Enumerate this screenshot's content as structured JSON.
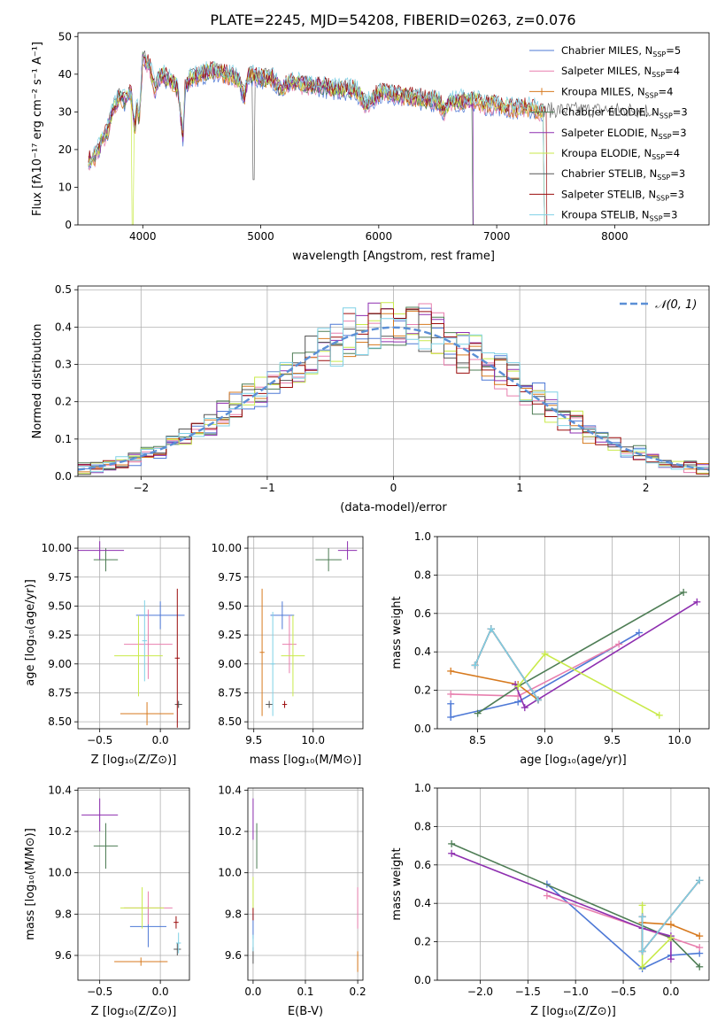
{
  "title": "PLATE=2245, MJD=54208, FIBERID=0263, z=0.076",
  "colors": [
    "#4e79d6",
    "#e87fae",
    "#d77a1f",
    "#4e7d55",
    "#8e2fb0",
    "#c9ea4a",
    "#555555",
    "#9b0c0c",
    "#7fd1e6"
  ],
  "chart_data": [
    {
      "id": "spectrum",
      "type": "line",
      "xlabel": "wavelength [Angstrom, rest frame]",
      "ylabel": "Flux [fλ10⁻¹⁷ erg cm⁻² s⁻¹ A⁻¹]",
      "xlim": [
        3450,
        8800
      ],
      "ylim": [
        0,
        51
      ],
      "xticks": [
        4000,
        5000,
        6000,
        7000,
        8000
      ],
      "yticks": [
        0,
        10,
        20,
        30,
        40,
        50
      ],
      "grid": false,
      "legend_position": "top-right",
      "legend": [
        {
          "label": "Chabrier MILES, N",
          "sub": "SSP",
          "tail": "=5",
          "color": "#4e79d6",
          "marker": false
        },
        {
          "label": "Salpeter MILES, N",
          "sub": "SSP",
          "tail": "=4",
          "color": "#e87fae",
          "marker": false
        },
        {
          "label": "Kroupa MILES, N",
          "sub": "SSP",
          "tail": "=4",
          "color": "#d77a1f",
          "marker": true
        },
        {
          "label": "Chabrier ELODIE, N",
          "sub": "SSP",
          "tail": "=3",
          "color": "#4e7d55",
          "marker": false
        },
        {
          "label": "Salpeter ELODIE, N",
          "sub": "SSP",
          "tail": "=3",
          "color": "#8e2fb0",
          "marker": false
        },
        {
          "label": "Kroupa ELODIE, N",
          "sub": "SSP",
          "tail": "=4",
          "color": "#c9ea4a",
          "marker": false
        },
        {
          "label": "Chabrier STELIB, N",
          "sub": "SSP",
          "tail": "=3",
          "color": "#555555",
          "marker": false
        },
        {
          "label": "Salpeter STELIB, N",
          "sub": "SSP",
          "tail": "=3",
          "color": "#9b0c0c",
          "marker": false
        },
        {
          "label": "Kroupa STELIB, N",
          "sub": "SSP",
          "tail": "=3",
          "color": "#7fd1e6",
          "marker": false
        }
      ],
      "x": [
        3540,
        3600,
        3650,
        3700,
        3750,
        3800,
        3850,
        3900,
        3933,
        3950,
        3968,
        4000,
        4030,
        4060,
        4102,
        4150,
        4200,
        4250,
        4300,
        4340,
        4360,
        4400,
        4500,
        4600,
        4700,
        4800,
        4861,
        4900,
        5000,
        5100,
        5175,
        5250,
        5400,
        5500,
        5600,
        5700,
        5800,
        5893,
        6000,
        6100,
        6200,
        6300,
        6400,
        6500,
        6563,
        6600,
        6700,
        6800,
        6900,
        7000,
        7100,
        7200,
        7300,
        7400
      ],
      "y": [
        17,
        18,
        22,
        25,
        31,
        34,
        33,
        35,
        25,
        33,
        27,
        45,
        43,
        42,
        36,
        40,
        39,
        38,
        36,
        23,
        37,
        39,
        40,
        41,
        40,
        39,
        34,
        40,
        39,
        39,
        36,
        38,
        37,
        37,
        36,
        36,
        36,
        32,
        35,
        35,
        34,
        34,
        33,
        33,
        30,
        33,
        33,
        33,
        32,
        32,
        31,
        31,
        31,
        30
      ]
    },
    {
      "id": "residuals",
      "type": "histogram",
      "xlabel": "(data-model)/error",
      "ylabel": "Normed distribution",
      "xlim": [
        -2.5,
        2.5
      ],
      "ylim": [
        0,
        0.51
      ],
      "xticks": [
        -2,
        -1,
        0,
        1,
        2
      ],
      "yticks": [
        0.0,
        0.1,
        0.2,
        0.3,
        0.4,
        0.5
      ],
      "grid": true,
      "legend_position": "top-right",
      "reference": {
        "label": "𝒩(0, 1)",
        "color": "#5b8fd6",
        "mean": 0,
        "sigma": 1
      }
    },
    {
      "id": "age-vs-Z",
      "type": "scatter",
      "xlabel": "Z [log₁₀(Z/Z⊙)]",
      "ylabel": "age  [log₁₀(age/yr)]",
      "xlim": [
        -0.68,
        0.24
      ],
      "ylim": [
        8.44,
        10.1
      ],
      "xticks": [
        -0.5,
        0.0
      ],
      "yticks": [
        8.5,
        8.75,
        9.0,
        9.25,
        9.5,
        9.75,
        10.0
      ],
      "grid": true,
      "points": [
        {
          "x": 0.0,
          "xerr": 0.2,
          "y": 9.42,
          "yerr": 0.12,
          "color": "#4e79d6"
        },
        {
          "x": -0.1,
          "xerr": 0.2,
          "y": 9.17,
          "yerr": 0.3,
          "color": "#e87fae"
        },
        {
          "x": -0.11,
          "xerr": 0.22,
          "y": 8.57,
          "yerr": 0.1,
          "color": "#d77a1f"
        },
        {
          "x": -0.45,
          "xerr": 0.1,
          "y": 9.9,
          "yerr": 0.1,
          "color": "#4e7d55"
        },
        {
          "x": -0.5,
          "xerr": 0.2,
          "y": 9.98,
          "yerr": 0.08,
          "color": "#8e2fb0"
        },
        {
          "x": -0.18,
          "xerr": 0.2,
          "y": 9.07,
          "yerr": 0.35,
          "color": "#c9ea4a"
        },
        {
          "x": 0.15,
          "xerr": 0.03,
          "y": 8.65,
          "yerr": 0.03,
          "color": "#555555"
        },
        {
          "x": 0.14,
          "xerr": 0.02,
          "y": 9.05,
          "yerr": 0.6,
          "color": "#9b0c0c"
        },
        {
          "x": -0.13,
          "xerr": 0.02,
          "y": 9.2,
          "yerr": 0.35,
          "color": "#7fd1e6"
        }
      ]
    },
    {
      "id": "age-vs-mass",
      "type": "scatter",
      "xlabel": "mass [log₁₀(M/M⊙)]",
      "ylabel": "",
      "xlim": [
        9.45,
        10.42
      ],
      "ylim": [
        8.44,
        10.1
      ],
      "xticks": [
        9.5,
        10.0
      ],
      "yticks": [
        8.5,
        8.75,
        9.0,
        9.25,
        9.5,
        9.75,
        10.0
      ],
      "grid": true,
      "points": [
        {
          "x": 9.74,
          "xerr": 0.1,
          "y": 9.42,
          "yerr": 0.12,
          "color": "#4e79d6"
        },
        {
          "x": 9.8,
          "xerr": 0.06,
          "y": 9.17,
          "yerr": 0.25,
          "color": "#e87fae"
        },
        {
          "x": 9.57,
          "xerr": 0.02,
          "y": 9.1,
          "yerr": 0.55,
          "color": "#d77a1f"
        },
        {
          "x": 10.13,
          "xerr": 0.11,
          "y": 9.9,
          "yerr": 0.1,
          "color": "#4e7d55"
        },
        {
          "x": 10.29,
          "xerr": 0.08,
          "y": 9.98,
          "yerr": 0.08,
          "color": "#8e2fb0"
        },
        {
          "x": 9.83,
          "xerr": 0.1,
          "y": 9.07,
          "yerr": 0.35,
          "color": "#c9ea4a"
        },
        {
          "x": 9.63,
          "xerr": 0.03,
          "y": 8.65,
          "yerr": 0.03,
          "color": "#555555"
        },
        {
          "x": 9.76,
          "xerr": 0.02,
          "y": 8.65,
          "yerr": 0.03,
          "color": "#9b0c0c"
        },
        {
          "x": 9.66,
          "xerr": 0.02,
          "y": 9.0,
          "yerr": 0.45,
          "color": "#7fd1e6"
        }
      ]
    },
    {
      "id": "weight-vs-age",
      "type": "line",
      "xlabel": "age  [log₁₀(age/yr)]",
      "ylabel": "mass weight",
      "xlim": [
        8.2,
        10.22
      ],
      "ylim": [
        0,
        1
      ],
      "xticks": [
        8.5,
        9.0,
        9.5,
        10.0
      ],
      "yticks": [
        0.0,
        0.2,
        0.4,
        0.6,
        0.8,
        1.0
      ],
      "grid": true,
      "series": [
        {
          "color": "#4e79d6",
          "x": [
            8.3,
            8.3,
            8.8,
            9.7
          ],
          "y": [
            0.13,
            0.06,
            0.14,
            0.5
          ]
        },
        {
          "color": "#e87fae",
          "x": [
            8.3,
            8.8,
            9.55
          ],
          "y": [
            0.18,
            0.17,
            0.44
          ]
        },
        {
          "color": "#d77a1f",
          "x": [
            8.3,
            8.8,
            8.95
          ],
          "y": [
            0.3,
            0.23,
            0.15
          ]
        },
        {
          "color": "#4e7d55",
          "x": [
            8.5,
            8.8,
            10.03
          ],
          "y": [
            0.08,
            0.22,
            0.71
          ]
        },
        {
          "color": "#8e2fb0",
          "x": [
            8.78,
            8.85,
            10.13
          ],
          "y": [
            0.23,
            0.11,
            0.66
          ]
        },
        {
          "color": "#c9ea4a",
          "x": [
            8.8,
            9.0,
            9.85
          ],
          "y": [
            0.22,
            0.39,
            0.07
          ]
        },
        {
          "color": "#555555",
          "x": [
            8.48,
            8.6,
            8.95
          ],
          "y": [
            0.33,
            0.52,
            0.15
          ]
        },
        {
          "color": "#9b0c0c",
          "x": [
            8.48,
            8.6,
            8.95
          ],
          "y": [
            0.33,
            0.52,
            0.15
          ]
        },
        {
          "color": "#7fd1e6",
          "x": [
            8.48,
            8.6,
            8.95
          ],
          "y": [
            0.33,
            0.52,
            0.15
          ]
        }
      ]
    },
    {
      "id": "mass-vs-Z",
      "type": "scatter",
      "xlabel": "Z [log₁₀(Z/Z⊙)]",
      "ylabel": "mass [log₁₀(M/M⊙)]",
      "xlim": [
        -0.68,
        0.24
      ],
      "ylim": [
        9.48,
        10.41
      ],
      "xticks": [
        -0.5,
        0.0
      ],
      "yticks": [
        9.6,
        9.8,
        10.0,
        10.2,
        10.4
      ],
      "grid": true,
      "points": [
        {
          "x": -0.1,
          "xerr": 0.15,
          "y": 9.74,
          "yerr": 0.1,
          "color": "#4e79d6"
        },
        {
          "x": -0.1,
          "xerr": 0.2,
          "y": 9.83,
          "yerr": 0.08,
          "color": "#e87fae"
        },
        {
          "x": -0.16,
          "xerr": 0.22,
          "y": 9.57,
          "yerr": 0.02,
          "color": "#d77a1f"
        },
        {
          "x": -0.45,
          "xerr": 0.1,
          "y": 10.13,
          "yerr": 0.11,
          "color": "#4e7d55"
        },
        {
          "x": -0.5,
          "xerr": 0.15,
          "y": 10.28,
          "yerr": 0.08,
          "color": "#8e2fb0"
        },
        {
          "x": -0.15,
          "xerr": 0.18,
          "y": 9.83,
          "yerr": 0.1,
          "color": "#c9ea4a"
        },
        {
          "x": 0.14,
          "xerr": 0.03,
          "y": 9.63,
          "yerr": 0.03,
          "color": "#555555"
        },
        {
          "x": 0.13,
          "xerr": 0.02,
          "y": 9.76,
          "yerr": 0.03,
          "color": "#9b0c0c"
        },
        {
          "x": 0.15,
          "xerr": 0.02,
          "y": 9.66,
          "yerr": 0.05,
          "color": "#7fd1e6"
        }
      ]
    },
    {
      "id": "mass-vs-ebv",
      "type": "scatter",
      "xlabel": "E(B-V)",
      "ylabel": "",
      "xlim": [
        -0.01,
        0.21
      ],
      "ylim": [
        9.48,
        10.41
      ],
      "xticks": [
        0.0,
        0.1,
        0.2
      ],
      "yticks": [
        9.6,
        9.8,
        10.0,
        10.2,
        10.4
      ],
      "grid": true,
      "points": [
        {
          "x": 0.0,
          "xerr": 0,
          "y": 9.74,
          "yerr": 0.06,
          "color": "#4e79d6"
        },
        {
          "x": 0.2,
          "xerr": 0,
          "y": 9.83,
          "yerr": 0.1,
          "color": "#e87fae"
        },
        {
          "x": 0.2,
          "xerr": 0,
          "y": 9.57,
          "yerr": 0.05,
          "color": "#d77a1f"
        },
        {
          "x": 0.007,
          "xerr": 0,
          "y": 10.13,
          "yerr": 0.11,
          "color": "#4e7d55"
        },
        {
          "x": 0.0,
          "xerr": 0,
          "y": 10.26,
          "yerr": 0.1,
          "color": "#8e2fb0"
        },
        {
          "x": 0.0,
          "xerr": 0,
          "y": 9.9,
          "yerr": 0.08,
          "color": "#c9ea4a"
        },
        {
          "x": 0.0,
          "xerr": 0,
          "y": 9.6,
          "yerr": 0.04,
          "color": "#555555"
        },
        {
          "x": 0.0,
          "xerr": 0,
          "y": 9.8,
          "yerr": 0.03,
          "color": "#9b0c0c"
        },
        {
          "x": 0.0,
          "xerr": 0,
          "y": 9.66,
          "yerr": 0.04,
          "color": "#7fd1e6"
        }
      ]
    },
    {
      "id": "weight-vs-Z",
      "type": "line",
      "xlabel": "Z [log₁₀(Z/Z⊙)]",
      "ylabel": "mass weight",
      "xlim": [
        -2.45,
        0.4
      ],
      "ylim": [
        0,
        1
      ],
      "xticks": [
        -2.0,
        -1.5,
        -1.0,
        -0.5,
        0.0
      ],
      "yticks": [
        0.0,
        0.2,
        0.4,
        0.6,
        0.8,
        1.0
      ],
      "grid": true,
      "series": [
        {
          "color": "#4e79d6",
          "x": [
            -1.3,
            -0.3,
            0.0,
            0.3
          ],
          "y": [
            0.5,
            0.06,
            0.13,
            0.14
          ]
        },
        {
          "color": "#e87fae",
          "x": [
            -1.3,
            0.3
          ],
          "y": [
            0.44,
            0.17
          ]
        },
        {
          "color": "#d77a1f",
          "x": [
            -0.3,
            0.0,
            0.3
          ],
          "y": [
            0.3,
            0.29,
            0.23
          ]
        },
        {
          "color": "#4e7d55",
          "x": [
            -2.3,
            0.0,
            0.3
          ],
          "y": [
            0.71,
            0.22,
            0.07
          ]
        },
        {
          "color": "#8e2fb0",
          "x": [
            -2.3,
            -0.3,
            0.0,
            0.0
          ],
          "y": [
            0.66,
            0.27,
            0.23,
            0.11
          ]
        },
        {
          "color": "#c9ea4a",
          "x": [
            -0.3,
            -0.3,
            0.0
          ],
          "y": [
            0.39,
            0.07,
            0.22
          ]
        },
        {
          "color": "#555555",
          "x": [
            -0.3,
            -0.3,
            0.3
          ],
          "y": [
            0.33,
            0.15,
            0.52
          ]
        },
        {
          "color": "#9b0c0c",
          "x": [
            -0.3,
            -0.3,
            0.3
          ],
          "y": [
            0.33,
            0.15,
            0.52
          ]
        },
        {
          "color": "#7fd1e6",
          "x": [
            -0.3,
            -0.3,
            0.3
          ],
          "y": [
            0.33,
            0.15,
            0.52
          ]
        }
      ]
    }
  ]
}
